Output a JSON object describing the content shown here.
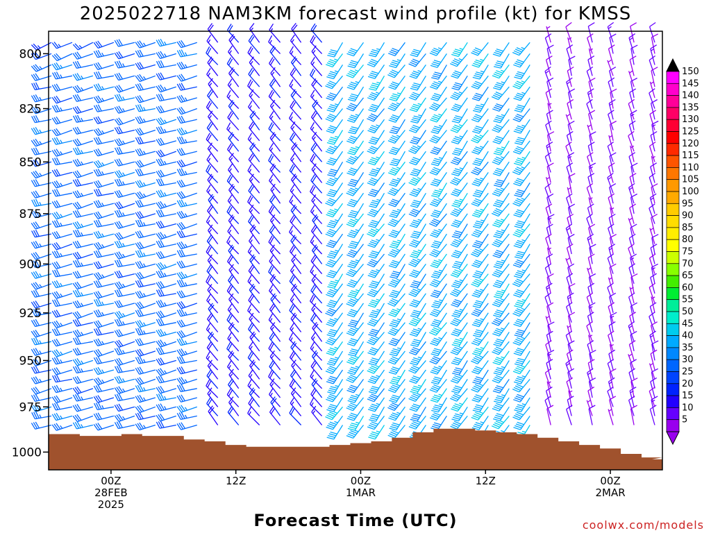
{
  "chart_data": {
    "type": "wind-profile",
    "title": "2025022718 NAM3KM forecast wind profile (kt) for KMSS",
    "xlabel": "Forecast Time (UTC)",
    "ylabel": "",
    "credit": "coolwx.com/models",
    "y_axis": {
      "scale": "pressure-hPa",
      "range": [
        790,
        1010
      ],
      "ticks": [
        800,
        825,
        850,
        875,
        900,
        925,
        950,
        975,
        1000
      ]
    },
    "x_axis": {
      "range_hours": [
        -6,
        53
      ],
      "ticks": [
        {
          "hour": 0,
          "lines": [
            "00Z",
            "28FEB",
            "2025"
          ]
        },
        {
          "hour": 12,
          "lines": [
            "12Z"
          ]
        },
        {
          "hour": 24,
          "lines": [
            "00Z",
            "1MAR"
          ]
        },
        {
          "hour": 36,
          "lines": [
            "12Z"
          ]
        },
        {
          "hour": 48,
          "lines": [
            "00Z",
            "2MAR"
          ]
        }
      ]
    },
    "colorbar": {
      "units": "kt",
      "labels": [
        150,
        145,
        140,
        135,
        130,
        125,
        120,
        115,
        110,
        105,
        100,
        95,
        90,
        85,
        80,
        75,
        70,
        65,
        60,
        55,
        50,
        45,
        40,
        35,
        30,
        25,
        20,
        15,
        10,
        5
      ],
      "colors": [
        "#ff00ff",
        "#ff00cc",
        "#ff0099",
        "#ff0066",
        "#ff0033",
        "#ff0000",
        "#ff2a00",
        "#ff5500",
        "#ff7700",
        "#ff9900",
        "#ffaa00",
        "#ffcc00",
        "#ffdd00",
        "#ffee00",
        "#ffff00",
        "#ccff00",
        "#88ff00",
        "#44ee00",
        "#00ee33",
        "#00ee99",
        "#00eecc",
        "#00ccee",
        "#00aaff",
        "#0088ff",
        "#0066ff",
        "#0044ff",
        "#0022ff",
        "#2200ff",
        "#6600ff",
        "#9900ee"
      ]
    },
    "surface_pressure": {
      "hours": [
        -6,
        -4,
        -2,
        0,
        2,
        4,
        6,
        8,
        10,
        12,
        14,
        16,
        18,
        20,
        22,
        24,
        26,
        28,
        30,
        32,
        34,
        36,
        38,
        40,
        42,
        44,
        46,
        48,
        50,
        52,
        53
      ],
      "hpa": [
        990,
        990,
        991,
        991,
        990,
        991,
        991,
        993,
        994,
        996,
        997,
        997,
        997,
        997,
        996,
        995,
        994,
        992,
        989,
        987,
        987,
        988,
        989,
        990,
        992,
        994,
        996,
        998,
        1001,
        1003,
        1004
      ]
    },
    "profile": {
      "levels_hpa": [
        795,
        800,
        805,
        810,
        815,
        820,
        825,
        830,
        835,
        840,
        845,
        850,
        855,
        860,
        865,
        870,
        875,
        880,
        885,
        890,
        895,
        900,
        905,
        910,
        915,
        920,
        925,
        930,
        935,
        940,
        945,
        950,
        955,
        960,
        965,
        970,
        975,
        980,
        985
      ],
      "hours_step": 2,
      "hours_start": -6,
      "regimes": [
        {
          "hours": [
            -6,
            10
          ],
          "dir_deg": 255,
          "speed_kt": 32
        },
        {
          "hours": [
            10,
            22
          ],
          "dir_deg": 320,
          "speed_kt": 18
        },
        {
          "hours": [
            22,
            42
          ],
          "dir_deg": 215,
          "speed_kt": 42
        },
        {
          "hours": [
            42,
            53
          ],
          "dir_deg": 345,
          "speed_kt": 10
        }
      ]
    }
  }
}
